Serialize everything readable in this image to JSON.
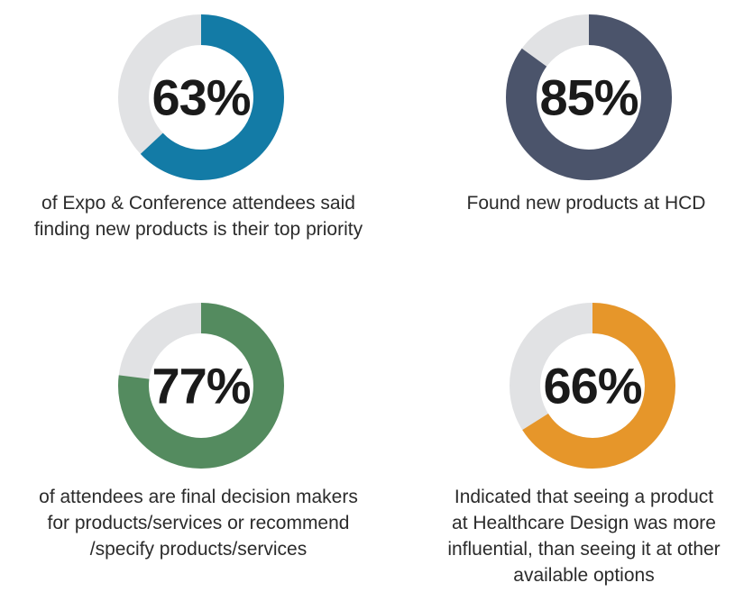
{
  "stats": [
    {
      "percent_label": "63%",
      "value": 63,
      "color": "#137ba6",
      "caption_lines": [
        "of Expo & Conference attendees said",
        "finding new products is their top priority"
      ]
    },
    {
      "percent_label": "85%",
      "value": 85,
      "color": "#4b546b",
      "caption_lines": [
        "Found new products at HCD"
      ]
    },
    {
      "percent_label": "77%",
      "value": 77,
      "color": "#548b5f",
      "caption_lines": [
        "of attendees are final decision makers",
        "for products/services or recommend",
        "/specify products/services"
      ]
    },
    {
      "percent_label": "66%",
      "value": 66,
      "color": "#e6962a",
      "caption_lines": [
        "Indicated that seeing a product",
        "at Healthcare Design was more",
        "influential, than seeing it at other",
        "available options"
      ]
    }
  ],
  "track_color": "#e1e2e4",
  "chart_data": [
    {
      "type": "pie",
      "style": "donut",
      "values": [
        63,
        37
      ],
      "label": "63%"
    },
    {
      "type": "pie",
      "style": "donut",
      "values": [
        85,
        15
      ],
      "label": "85%"
    },
    {
      "type": "pie",
      "style": "donut",
      "values": [
        77,
        23
      ],
      "label": "77%"
    },
    {
      "type": "pie",
      "style": "donut",
      "values": [
        66,
        34
      ],
      "label": "66%"
    }
  ]
}
